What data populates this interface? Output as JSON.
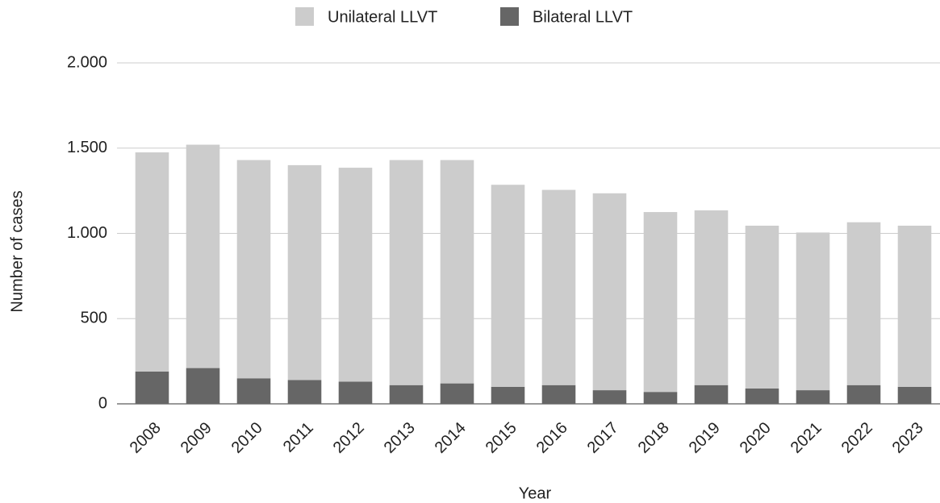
{
  "chart_data": {
    "type": "bar",
    "stacked": true,
    "x_label": "Year",
    "y_label": "Number of cases",
    "categories": [
      "2008",
      "2009",
      "2010",
      "2011",
      "2012",
      "2013",
      "2014",
      "2015",
      "2016",
      "2017",
      "2018",
      "2019",
      "2020",
      "2021",
      "2022",
      "2023"
    ],
    "series": [
      {
        "name": "Unilateral LLVT",
        "color": "#cccccc",
        "values": [
          1285,
          1310,
          1280,
          1260,
          1255,
          1320,
          1310,
          1185,
          1145,
          1155,
          1055,
          1025,
          955,
          925,
          955,
          945
        ]
      },
      {
        "name": "Bilateral LLVT",
        "color": "#666666",
        "values": [
          190,
          210,
          150,
          140,
          130,
          110,
          120,
          100,
          110,
          80,
          70,
          110,
          90,
          80,
          110,
          100
        ]
      }
    ],
    "ylim": [
      0,
      2000
    ],
    "yticks": [
      0,
      500,
      {
        "value": 1000,
        "label": "1.000"
      },
      {
        "value": 1500,
        "label": "1.500"
      },
      {
        "value": 2000,
        "label": "2.000"
      }
    ],
    "grid": true,
    "legend": "top"
  }
}
